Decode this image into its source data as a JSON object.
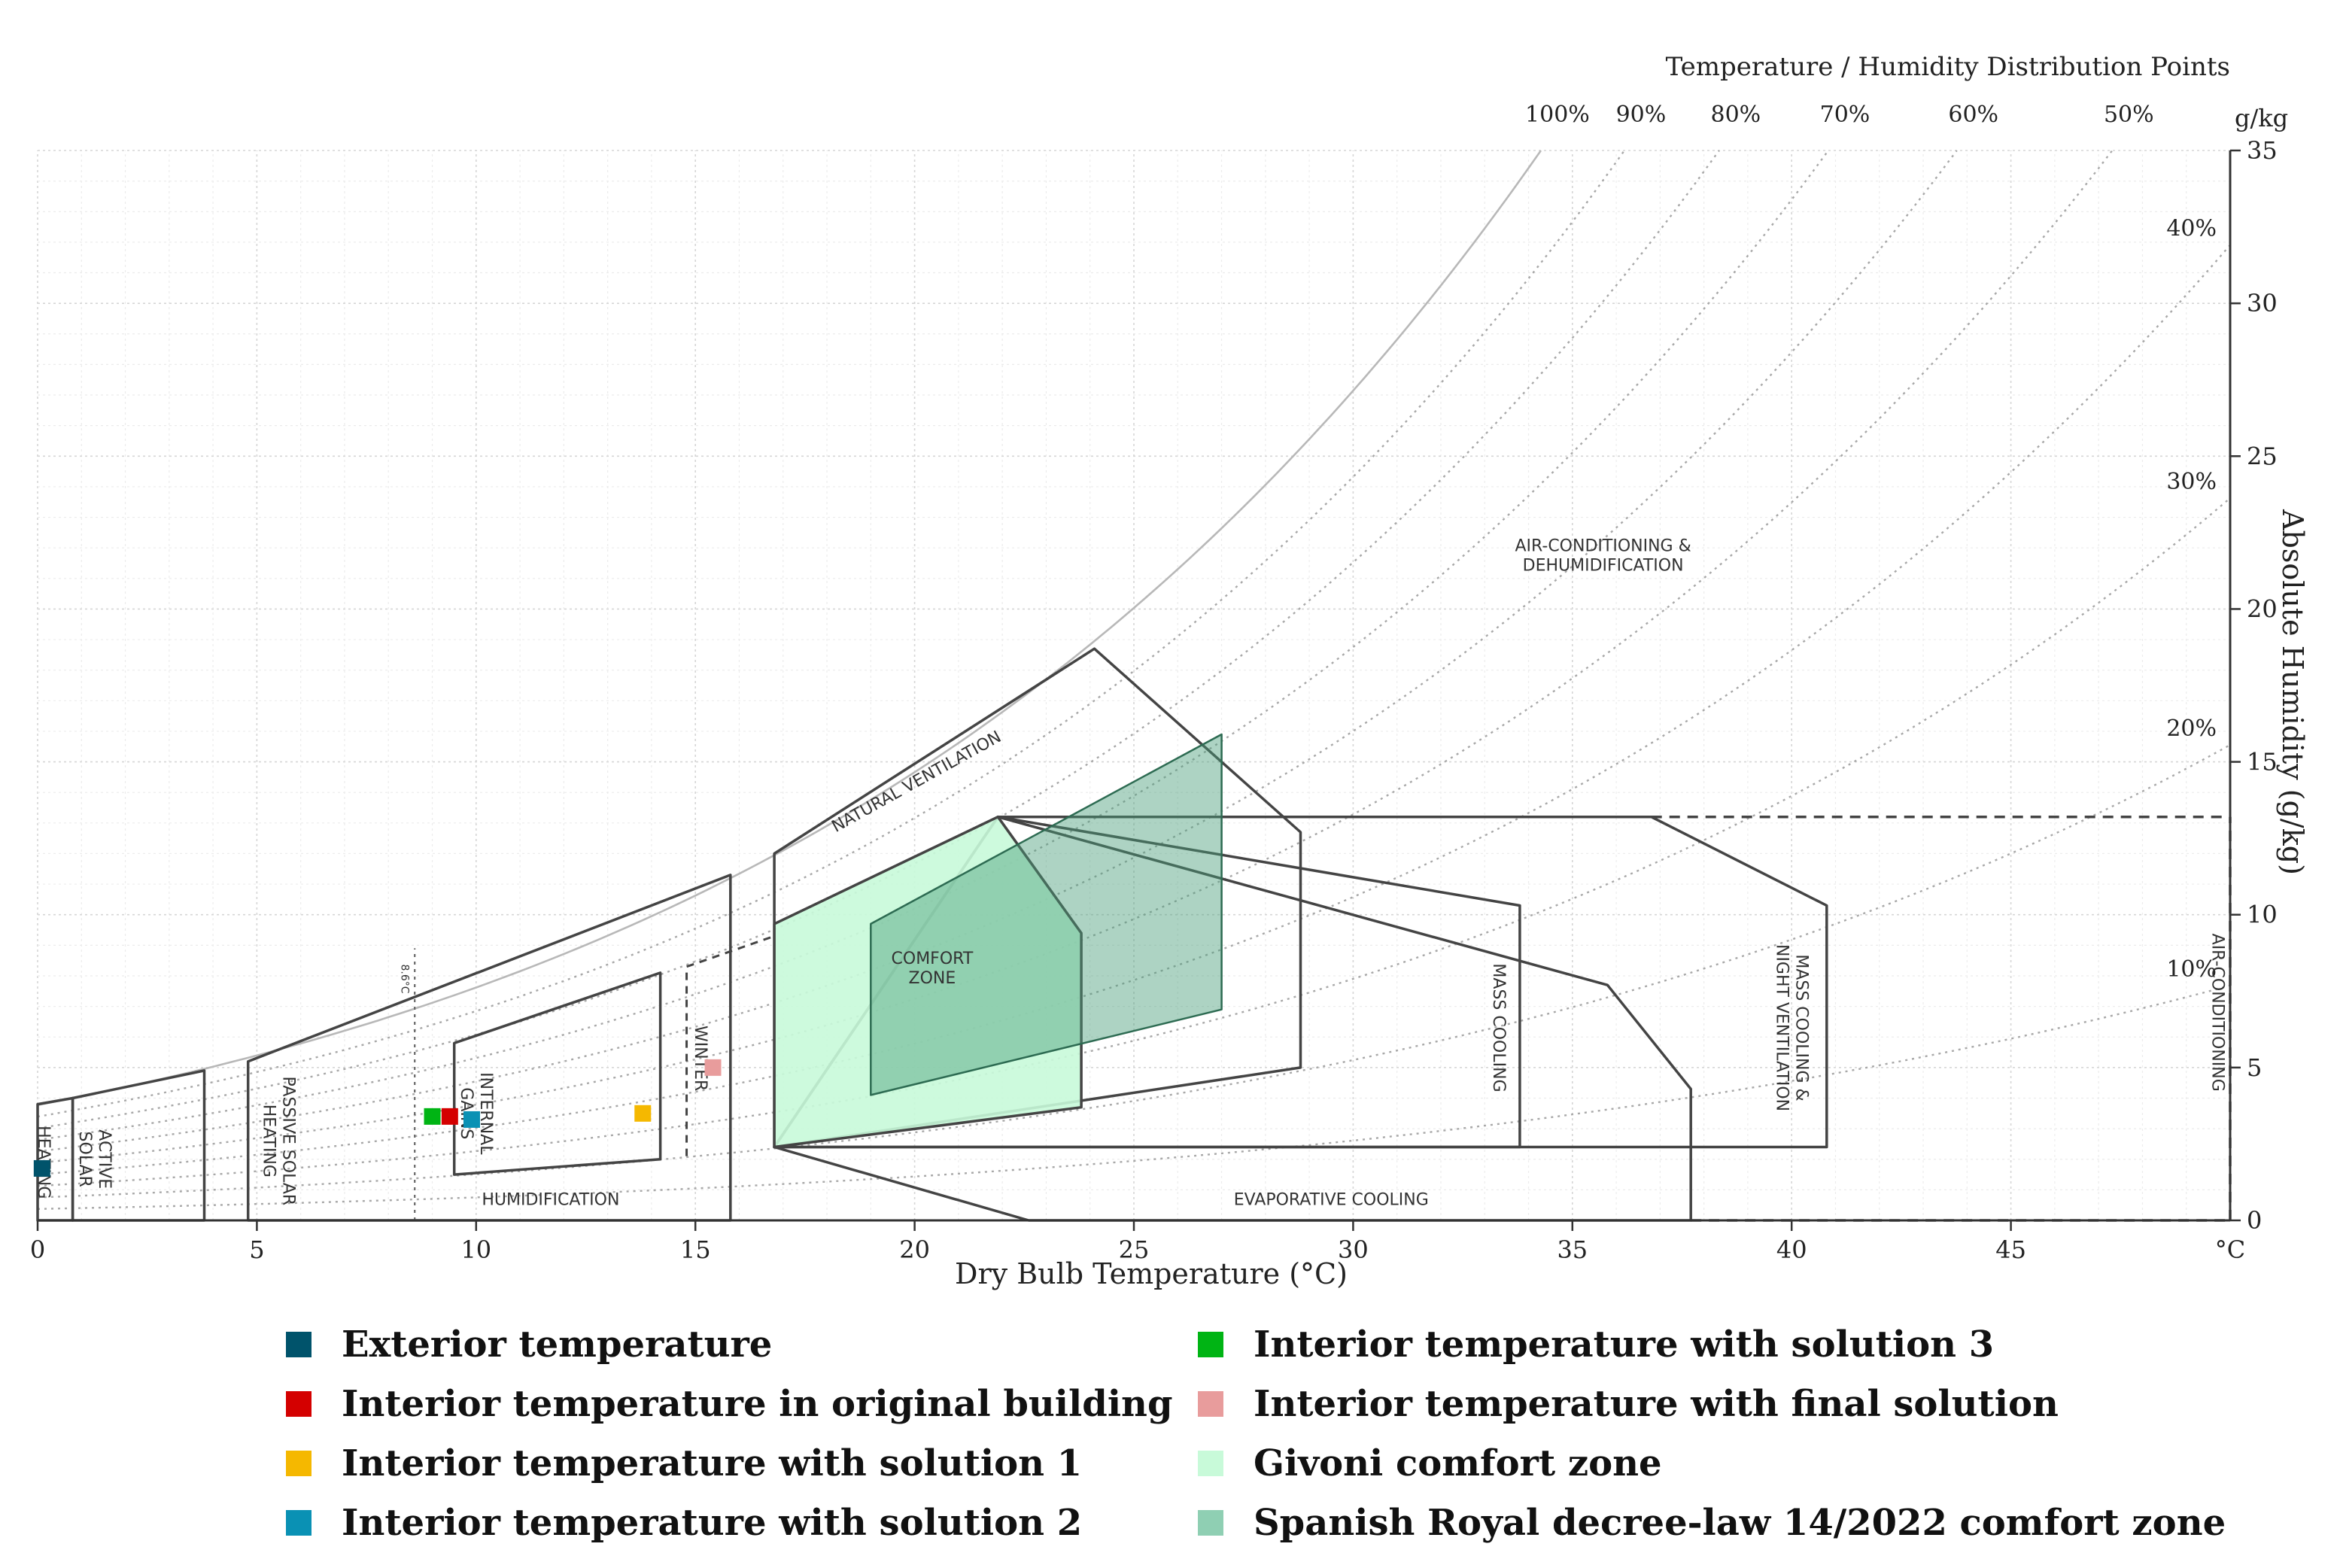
{
  "chart_data": {
    "type": "scatter",
    "subtitle": "Temperature / Humidity Distribution Points",
    "xlabel": "Dry Bulb Temperature (°C)",
    "ylabel": "Absolute Humidity (g/kg)",
    "x_unit_label": "°C",
    "y_unit_label": "g/kg",
    "xlim": [
      0,
      50
    ],
    "ylim": [
      0,
      35
    ],
    "x_ticks": [
      0,
      5,
      10,
      15,
      20,
      25,
      30,
      35,
      40,
      45
    ],
    "x_tick_labels": [
      "0",
      "5",
      "10",
      "15",
      "20",
      "25",
      "30",
      "35",
      "40",
      "45"
    ],
    "y_ticks": [
      0,
      5,
      10,
      15,
      20,
      25,
      30,
      35
    ],
    "y_tick_labels": [
      "0",
      "5",
      "10",
      "15",
      "20",
      "25",
      "30",
      "35"
    ],
    "grid": true,
    "rh_curves": [
      {
        "rh": 100,
        "label": "100%"
      },
      {
        "rh": 90,
        "label": "90%"
      },
      {
        "rh": 80,
        "label": "80%"
      },
      {
        "rh": 70,
        "label": "70%"
      },
      {
        "rh": 60,
        "label": "60%"
      },
      {
        "rh": 50,
        "label": "50%"
      },
      {
        "rh": 40,
        "label": "40%"
      },
      {
        "rh": 30,
        "label": "30%"
      },
      {
        "rh": 20,
        "label": "20%"
      },
      {
        "rh": 10,
        "label": "10%"
      }
    ],
    "zone_labels": {
      "heating": "HEATING",
      "active_solar": "ACTIVE SOLAR",
      "passive_solar": "PASSIVE SOLAR HEATING",
      "internal_gains": "INTERNAL GAINS",
      "winter": "WINTER",
      "natural_ventilation": "NATURAL VENTILATION",
      "comfort_zone": "COMFORT ZONE",
      "air_conditioning_dehum": "AIR-CONDITIONING & DEHUMIDIFICATION",
      "mass_cooling": "MASS COOLING",
      "mass_cooling_night": "MASS COOLING & NIGHT VENTILATION",
      "air_conditioning": "AIR-CONDITIONING",
      "humidification": "HUMIDIFICATION",
      "evaporative_cooling": "EVAPORATIVE COOLING",
      "temp_marker": "8.6°C"
    },
    "temp_marker_x": 8.6,
    "zones": {
      "givoni_comfort": [
        [
          16.8,
          2.4
        ],
        [
          16.8,
          9.7
        ],
        [
          21.9,
          13.2
        ],
        [
          23.8,
          9.4
        ],
        [
          23.8,
          3.7
        ]
      ],
      "spanish_comfort": [
        [
          19.0,
          4.1
        ],
        [
          19.0,
          9.7
        ],
        [
          27.0,
          15.9
        ],
        [
          27.0,
          6.9
        ]
      ],
      "natural_ventilation": [
        [
          16.8,
          2.4
        ],
        [
          16.8,
          12.0
        ],
        [
          24.1,
          18.7
        ],
        [
          28.8,
          12.7
        ],
        [
          28.8,
          5.0
        ]
      ],
      "mass_cooling": [
        [
          16.8,
          2.4
        ],
        [
          33.8,
          2.4
        ],
        [
          33.8,
          10.3
        ],
        [
          21.9,
          13.2
        ]
      ],
      "evaporative_cooling": [
        [
          16.8,
          2.4
        ],
        [
          22.6,
          0
        ],
        [
          37.7,
          0
        ],
        [
          37.7,
          4.3
        ],
        [
          35.8,
          7.7
        ],
        [
          21.9,
          13.2
        ]
      ],
      "mass_cooling_night": [
        [
          16.8,
          2.4
        ],
        [
          40.8,
          2.4
        ],
        [
          40.8,
          10.3
        ],
        [
          36.8,
          13.2
        ],
        [
          21.9,
          13.2
        ]
      ],
      "internal_gains": [
        [
          9.5,
          1.5
        ],
        [
          9.5,
          5.8
        ],
        [
          14.2,
          8.1
        ],
        [
          14.2,
          2.0
        ]
      ],
      "passive_solar": [
        [
          4.8,
          0
        ],
        [
          4.8,
          5.2
        ],
        [
          15.8,
          11.3
        ],
        [
          15.8,
          0
        ]
      ],
      "active_solar": [
        [
          0.8,
          0
        ],
        [
          0.8,
          4.0
        ],
        [
          3.8,
          4.9
        ],
        [
          3.8,
          0
        ]
      ],
      "heating": [
        [
          0,
          0
        ],
        [
          0,
          3.8
        ],
        [
          0.8,
          4.0
        ],
        [
          0.8,
          0
        ]
      ]
    },
    "series": [
      {
        "name": "Exterior temperature",
        "color": "#00536b",
        "x": [
          0.1
        ],
        "y": [
          1.7
        ]
      },
      {
        "name": "Interior temperature in original building",
        "color": "#d40000",
        "x": [
          9.4
        ],
        "y": [
          3.4
        ]
      },
      {
        "name": "Interior temperature with solution 1",
        "color": "#f5b800",
        "x": [
          13.8
        ],
        "y": [
          3.5
        ]
      },
      {
        "name": "Interior temperature with solution 2",
        "color": "#0a91b4",
        "x": [
          9.9
        ],
        "y": [
          3.3
        ]
      },
      {
        "name": "Interior temperature with solution 3",
        "color": "#00b414",
        "x": [
          9.0
        ],
        "y": [
          3.4
        ]
      },
      {
        "name": "Interior temperature with final solution",
        "color": "#e89c9c",
        "x": [
          15.4
        ],
        "y": [
          5.0
        ]
      }
    ],
    "area_series": [
      {
        "name": "Givoni comfort zone",
        "color": "#c8fad9"
      },
      {
        "name": "Spanish Royal decree-law 14/2022 comfort zone",
        "color": "#8fcfb3"
      }
    ]
  }
}
